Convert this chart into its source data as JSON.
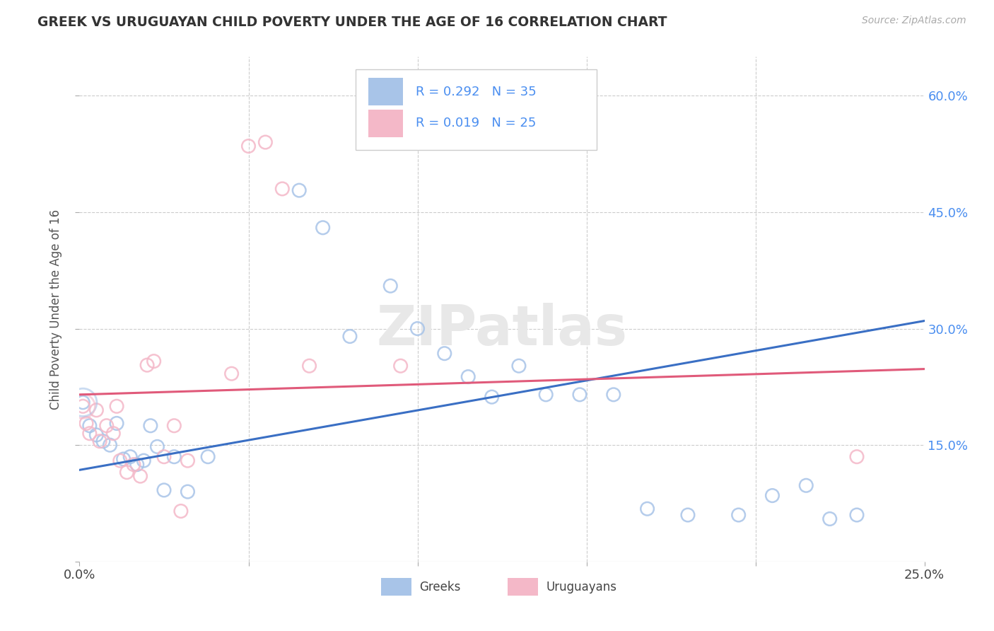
{
  "title": "GREEK VS URUGUAYAN CHILD POVERTY UNDER THE AGE OF 16 CORRELATION CHART",
  "source": "Source: ZipAtlas.com",
  "ylabel": "Child Poverty Under the Age of 16",
  "xlim": [
    0.0,
    0.25
  ],
  "ylim": [
    0.0,
    0.65
  ],
  "xticks": [
    0.0,
    0.05,
    0.1,
    0.15,
    0.2,
    0.25
  ],
  "yticks": [
    0.0,
    0.15,
    0.3,
    0.45,
    0.6
  ],
  "greek_R": "0.292",
  "greek_N": "35",
  "uruguayan_R": "0.019",
  "uruguayan_N": "25",
  "greek_color": "#a8c4e8",
  "uruguayan_color": "#f4b8c8",
  "greek_line_color": "#3a6fc4",
  "uruguayan_line_color": "#e05a7a",
  "background_color": "#ffffff",
  "grid_color": "#cccccc",
  "legend_text_color": "#4a8ef0",
  "greek_line_x0": 0.0,
  "greek_line_y0": 0.118,
  "greek_line_x1": 0.25,
  "greek_line_y1": 0.31,
  "uruguayan_line_x0": 0.0,
  "uruguayan_line_y0": 0.215,
  "uruguayan_line_x1": 0.25,
  "uruguayan_line_y1": 0.248,
  "greeks_x": [
    0.001,
    0.003,
    0.005,
    0.007,
    0.009,
    0.011,
    0.013,
    0.015,
    0.017,
    0.019,
    0.021,
    0.023,
    0.025,
    0.028,
    0.032,
    0.038,
    0.065,
    0.072,
    0.08,
    0.092,
    0.1,
    0.108,
    0.115,
    0.122,
    0.13,
    0.138,
    0.148,
    0.158,
    0.168,
    0.18,
    0.195,
    0.205,
    0.215,
    0.222,
    0.23
  ],
  "greeks_y": [
    0.205,
    0.175,
    0.163,
    0.155,
    0.15,
    0.178,
    0.132,
    0.135,
    0.125,
    0.13,
    0.175,
    0.148,
    0.092,
    0.135,
    0.09,
    0.135,
    0.478,
    0.43,
    0.29,
    0.355,
    0.3,
    0.268,
    0.238,
    0.212,
    0.252,
    0.215,
    0.215,
    0.215,
    0.068,
    0.06,
    0.06,
    0.085,
    0.098,
    0.055,
    0.06
  ],
  "uruguayans_x": [
    0.001,
    0.002,
    0.003,
    0.005,
    0.006,
    0.008,
    0.01,
    0.011,
    0.012,
    0.014,
    0.016,
    0.018,
    0.02,
    0.022,
    0.025,
    0.028,
    0.03,
    0.045,
    0.05,
    0.055,
    0.06,
    0.068,
    0.095,
    0.23,
    0.032
  ],
  "uruguayans_y": [
    0.2,
    0.178,
    0.165,
    0.195,
    0.155,
    0.175,
    0.165,
    0.2,
    0.13,
    0.115,
    0.125,
    0.11,
    0.253,
    0.258,
    0.135,
    0.175,
    0.065,
    0.242,
    0.535,
    0.54,
    0.48,
    0.252,
    0.252,
    0.135,
    0.13
  ]
}
